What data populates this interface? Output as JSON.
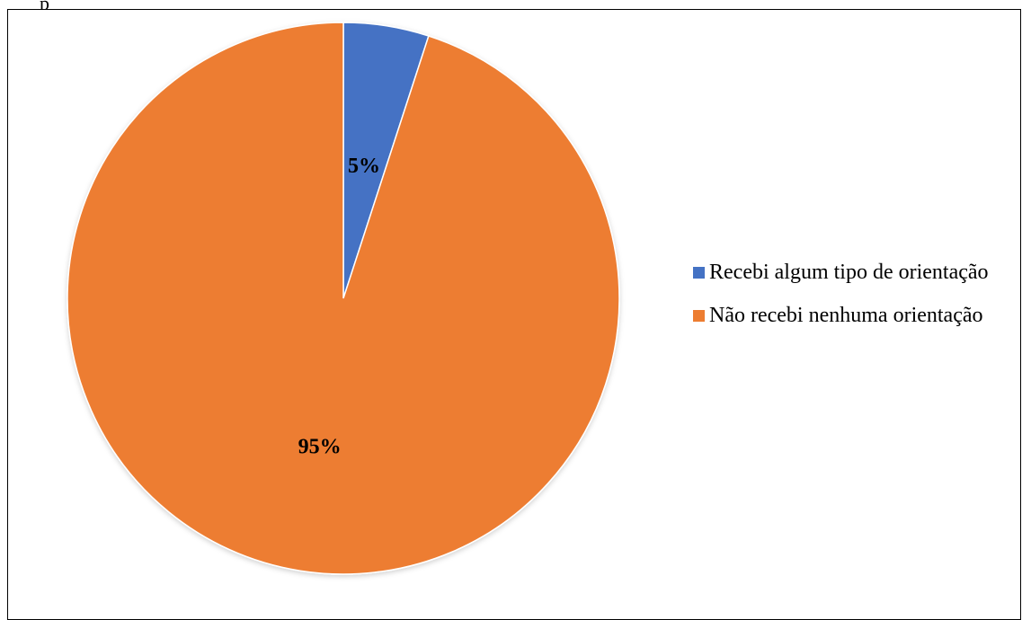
{
  "page": {
    "stray_text": "p"
  },
  "chart_data": {
    "type": "pie",
    "categories": [
      "Recebi algum tipo de orientação",
      "Não recebi nenhuma orientação"
    ],
    "values": [
      5,
      95
    ],
    "data_labels": [
      "5%",
      "95%"
    ],
    "colors": [
      "#4472C4",
      "#ED7D31"
    ],
    "legend": {
      "placement": "right",
      "entries": [
        "Recebi algum tipo de orientação",
        "Não recebi nenhuma orientação"
      ]
    },
    "title": ""
  }
}
